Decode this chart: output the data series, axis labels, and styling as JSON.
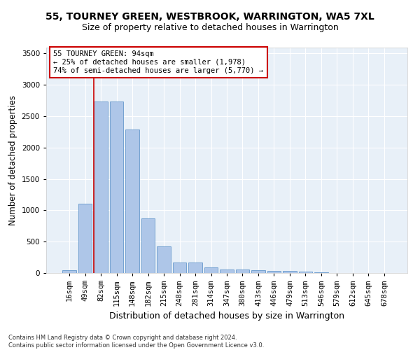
{
  "title": "55, TOURNEY GREEN, WESTBROOK, WARRINGTON, WA5 7XL",
  "subtitle": "Size of property relative to detached houses in Warrington",
  "xlabel": "Distribution of detached houses by size in Warrington",
  "ylabel": "Number of detached properties",
  "categories": [
    "16sqm",
    "49sqm",
    "82sqm",
    "115sqm",
    "148sqm",
    "182sqm",
    "215sqm",
    "248sqm",
    "281sqm",
    "314sqm",
    "347sqm",
    "380sqm",
    "413sqm",
    "446sqm",
    "479sqm",
    "513sqm",
    "546sqm",
    "579sqm",
    "612sqm",
    "645sqm",
    "678sqm"
  ],
  "values": [
    50,
    1100,
    2730,
    2730,
    2290,
    870,
    425,
    170,
    170,
    90,
    60,
    55,
    40,
    35,
    30,
    20,
    10,
    5,
    5,
    5,
    5
  ],
  "bar_color": "#aec6e8",
  "bar_edge_color": "#6699cc",
  "background_color": "#e8f0f8",
  "grid_color": "#ffffff",
  "vline_x_index": 2,
  "vline_color": "#cc0000",
  "annotation_text": "55 TOURNEY GREEN: 94sqm\n← 25% of detached houses are smaller (1,978)\n74% of semi-detached houses are larger (5,770) →",
  "annotation_box_facecolor": "#ffffff",
  "annotation_box_edgecolor": "#cc0000",
  "ylim": [
    0,
    3600
  ],
  "yticks": [
    0,
    500,
    1000,
    1500,
    2000,
    2500,
    3000,
    3500
  ],
  "footnote": "Contains HM Land Registry data © Crown copyright and database right 2024.\nContains public sector information licensed under the Open Government Licence v3.0.",
  "title_fontsize": 10,
  "subtitle_fontsize": 9,
  "xlabel_fontsize": 9,
  "ylabel_fontsize": 8.5,
  "tick_fontsize": 7.5,
  "annotation_fontsize": 7.5,
  "footnote_fontsize": 6
}
